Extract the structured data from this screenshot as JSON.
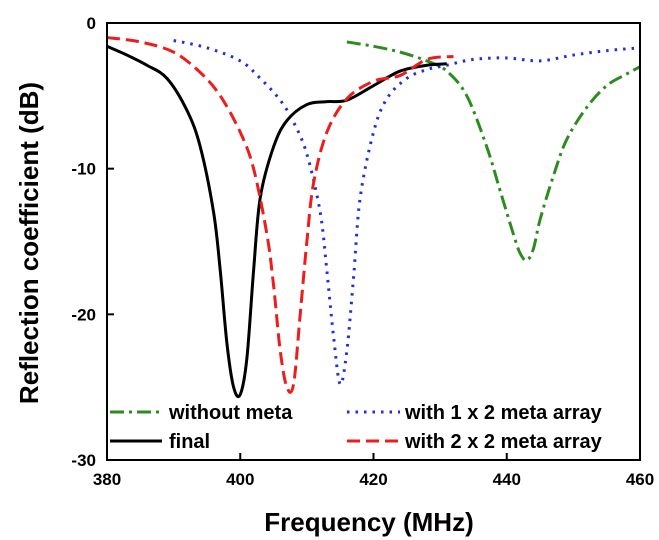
{
  "chart_data": {
    "type": "line",
    "title": "",
    "xlabel": "Frequency (MHz)",
    "ylabel": "Reflection coefficient (dB)",
    "xlim": [
      380,
      460
    ],
    "ylim": [
      -30,
      0
    ],
    "xticks": [
      380,
      400,
      420,
      440,
      460
    ],
    "yticks": [
      0,
      -10,
      -20,
      -30
    ],
    "xtick_labels": [
      "380",
      "400",
      "420",
      "440",
      "460"
    ],
    "ytick_labels": [
      "0",
      "-10",
      "-20",
      "-30"
    ],
    "grid": false,
    "legend_position": "bottom-left",
    "series": [
      {
        "name": "without meta",
        "color": "#2e8b1f",
        "dash": "dashdot",
        "x": [
          416,
          420,
          424,
          428,
          431,
          434,
          437,
          439,
          441,
          442,
          443,
          444,
          445,
          447,
          449,
          452,
          455,
          458,
          460
        ],
        "y": [
          -1.3,
          -1.6,
          -2.0,
          -2.6,
          -3.3,
          -5.0,
          -8.5,
          -11.5,
          -14.5,
          -15.8,
          -16.3,
          -15.5,
          -13.5,
          -10.5,
          -8.0,
          -5.8,
          -4.3,
          -3.5,
          -3.0
        ]
      },
      {
        "name": "with 1 x 2 meta array",
        "color": "#1f2fe0",
        "dash": "dotted",
        "x": [
          390,
          395,
          400,
          403,
          406,
          408,
          410,
          412,
          413,
          414,
          415,
          416,
          417,
          418,
          420,
          422,
          425,
          428,
          431,
          435,
          440,
          445,
          450,
          455,
          460
        ],
        "y": [
          -1.2,
          -1.7,
          -2.6,
          -3.8,
          -5.3,
          -6.8,
          -9.0,
          -13.0,
          -17.0,
          -21.5,
          -24.8,
          -22.5,
          -17.5,
          -12.0,
          -7.5,
          -5.2,
          -3.8,
          -3.2,
          -2.9,
          -2.5,
          -2.4,
          -2.6,
          -2.2,
          -1.9,
          -1.7
        ]
      },
      {
        "name": "final",
        "color": "#000000",
        "dash": "solid",
        "x": [
          380,
          383,
          386,
          389,
          392,
          394,
          396,
          397,
          398,
          399,
          400,
          401,
          402,
          403,
          405,
          407,
          410,
          413,
          416,
          420,
          424,
          428,
          431
        ],
        "y": [
          -1.6,
          -2.2,
          -2.9,
          -3.8,
          -6.0,
          -8.5,
          -13.0,
          -17.0,
          -22.0,
          -25.0,
          -25.5,
          -23.0,
          -17.0,
          -12.0,
          -8.5,
          -6.7,
          -5.6,
          -5.4,
          -5.3,
          -4.3,
          -3.3,
          -2.9,
          -2.8
        ]
      },
      {
        "name": "with 2 x 2 meta array",
        "color": "#ee1c1c",
        "dash": "dashed",
        "x": [
          380,
          385,
          390,
          394,
          397,
          400,
          402,
          404,
          405,
          406,
          407,
          408,
          409,
          410,
          411,
          413,
          416,
          420,
          424,
          428,
          432
        ],
        "y": [
          -1.0,
          -1.3,
          -2.0,
          -3.4,
          -5.0,
          -7.5,
          -10.0,
          -14.5,
          -18.0,
          -22.5,
          -25.0,
          -24.8,
          -20.0,
          -15.0,
          -11.0,
          -7.5,
          -5.2,
          -4.0,
          -3.6,
          -2.5,
          -2.3
        ]
      }
    ]
  },
  "legend": [
    {
      "label": "without meta"
    },
    {
      "label": "with 1 x 2 meta array"
    },
    {
      "label": "final"
    },
    {
      "label": "with 2 x 2 meta array"
    }
  ]
}
